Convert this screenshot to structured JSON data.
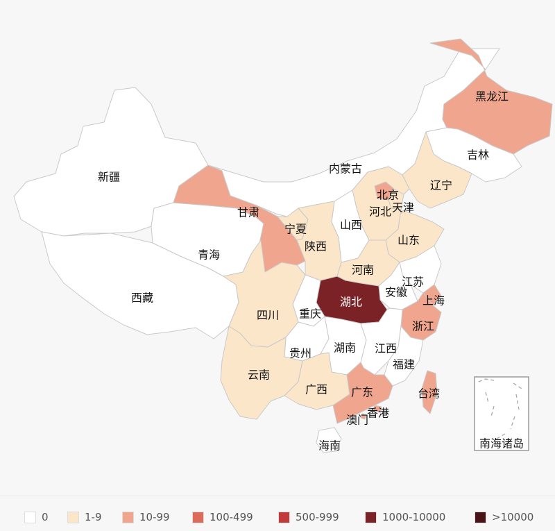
{
  "colors": {
    "background": "#f7f7f7",
    "border": "#c9c9c9",
    "0": "#ffffff",
    "1-9": "#fbe6c9",
    "10-99": "#f0a58f",
    "100-499": "#dd6b5b",
    "500-999": "#c23b3b",
    "1000-10000": "#7a2226",
    "gt10000": "#4a1416"
  },
  "legend": [
    {
      "label": "0",
      "color": "#ffffff"
    },
    {
      "label": "1-9",
      "color": "#fbe6c9"
    },
    {
      "label": "10-99",
      "color": "#f0a58f"
    },
    {
      "label": "100-499",
      "color": "#dd6b5b"
    },
    {
      "label": "500-999",
      "color": "#c23b3b"
    },
    {
      "label": "1000-10000",
      "color": "#7a2226"
    },
    {
      "label": ">10000",
      "color": "#4a1416"
    }
  ],
  "provinces": [
    {
      "name": "新疆",
      "bucket": "0"
    },
    {
      "name": "西藏",
      "bucket": "0"
    },
    {
      "name": "青海",
      "bucket": "0"
    },
    {
      "name": "甘肃",
      "bucket": "10-99"
    },
    {
      "name": "内蒙古",
      "bucket": "0"
    },
    {
      "name": "黑龙江",
      "bucket": "10-99"
    },
    {
      "name": "吉林",
      "bucket": "0"
    },
    {
      "name": "辽宁",
      "bucket": "1-9"
    },
    {
      "name": "北京",
      "bucket": "10-99"
    },
    {
      "name": "天津",
      "bucket": "1-9"
    },
    {
      "name": "河北",
      "bucket": "1-9"
    },
    {
      "name": "山西",
      "bucket": "0"
    },
    {
      "name": "宁夏",
      "bucket": "1-9"
    },
    {
      "name": "陕西",
      "bucket": "1-9"
    },
    {
      "name": "山东",
      "bucket": "1-9"
    },
    {
      "name": "河南",
      "bucket": "1-9"
    },
    {
      "name": "江苏",
      "bucket": "0"
    },
    {
      "name": "安徽",
      "bucket": "0"
    },
    {
      "name": "上海",
      "bucket": "10-99"
    },
    {
      "name": "湖北",
      "bucket": "1000-10000"
    },
    {
      "name": "重庆",
      "bucket": "0"
    },
    {
      "name": "四川",
      "bucket": "1-9"
    },
    {
      "name": "浙江",
      "bucket": "10-99"
    },
    {
      "name": "贵州",
      "bucket": "0"
    },
    {
      "name": "湖南",
      "bucket": "0"
    },
    {
      "name": "江西",
      "bucket": "0"
    },
    {
      "name": "福建",
      "bucket": "0"
    },
    {
      "name": "云南",
      "bucket": "1-9"
    },
    {
      "name": "广西",
      "bucket": "1-9"
    },
    {
      "name": "广东",
      "bucket": "10-99"
    },
    {
      "name": "台湾",
      "bucket": "10-99"
    },
    {
      "name": "香港",
      "bucket": "10-99"
    },
    {
      "name": "澳门",
      "bucket": "10-99"
    },
    {
      "name": "海南",
      "bucket": "0"
    }
  ],
  "inset": {
    "label": "南海诸岛"
  }
}
